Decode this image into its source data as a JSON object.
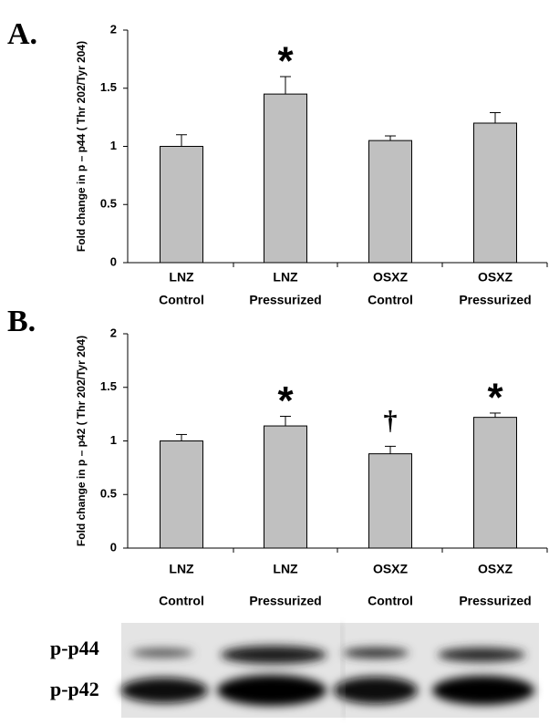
{
  "chart_data": [
    {
      "type": "bar",
      "panel": "A.",
      "ylabel": "Fold change in p – p44 ( Thr 202/Tyr 204)",
      "categories": [
        [
          "LNZ",
          "Control"
        ],
        [
          "LNZ",
          "Pressurized"
        ],
        [
          "OSXZ",
          "Control"
        ],
        [
          "OSXZ",
          "Pressurized"
        ]
      ],
      "values": [
        1.0,
        1.45,
        1.05,
        1.2
      ],
      "errors": [
        0.1,
        0.15,
        0.04,
        0.09
      ],
      "significance": [
        null,
        "*",
        null,
        null
      ],
      "color": "#c0c0c0",
      "ylim": [
        0,
        2
      ],
      "yticks": [
        0,
        0.5,
        1,
        1.5,
        2
      ]
    },
    {
      "type": "bar",
      "panel": "B.",
      "ylabel": "Fold change in p – p42 ( Thr 202/Tyr 204)",
      "categories": [
        [
          "LNZ",
          "Control"
        ],
        [
          "LNZ",
          "Pressurized"
        ],
        [
          "OSXZ",
          "Control"
        ],
        [
          "OSXZ",
          "Pressurized"
        ]
      ],
      "values": [
        1.0,
        1.14,
        0.88,
        1.22
      ],
      "errors": [
        0.06,
        0.09,
        0.07,
        0.04
      ],
      "significance": [
        null,
        "*",
        "†",
        "*"
      ],
      "color": "#c0c0c0",
      "ylim": [
        0,
        2
      ],
      "yticks": [
        0,
        0.5,
        1,
        1.5,
        2
      ]
    }
  ],
  "blot": {
    "labels": [
      "p-p44",
      "p-p42"
    ]
  }
}
